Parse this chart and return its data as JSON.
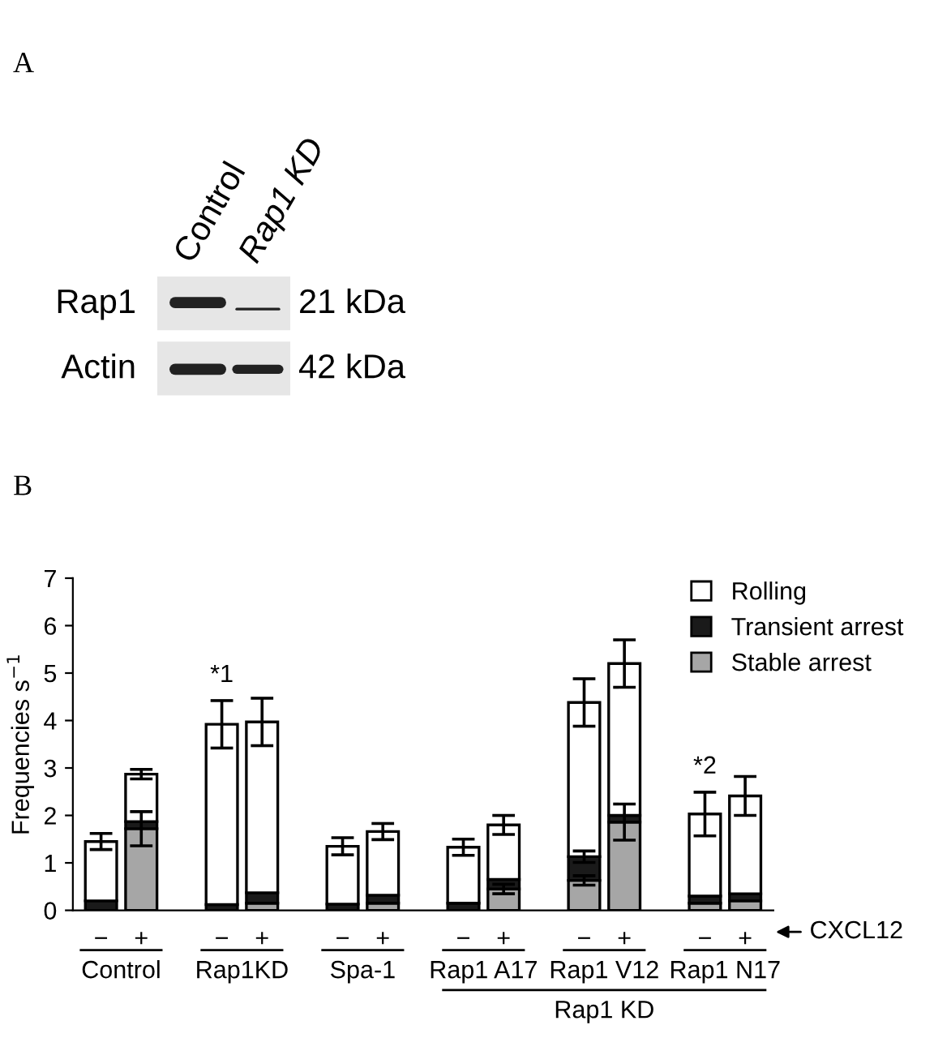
{
  "chart_data": [
    {
      "type": "other",
      "title": "A",
      "annotations": [
        "Control",
        "Rap1 KD",
        "Rap1",
        "21 kDa",
        "Actin",
        "42 kDa"
      ]
    },
    {
      "type": "bar",
      "title": "B",
      "ylabel": "Frequencies s$^{−1}$",
      "stacked": true,
      "legend": "top right",
      "categories": [
        "−",
        "+",
        null,
        "−",
        "+",
        null,
        "−",
        "+",
        null,
        "−",
        "+",
        null,
        "−",
        "+",
        null,
        "−",
        "+"
      ],
      "ylim": [
        0,
        7
      ],
      "yticks": [
        0,
        1,
        2,
        3,
        4,
        5,
        6,
        7
      ],
      "series": [
        {
          "name": "Stable arrest",
          "color": "#a6a6a6",
          "values": [
            null,
            1.72,
            null,
            null,
            0.15,
            null,
            null,
            0.15,
            null,
            null,
            0.45,
            null,
            0.63,
            1.86,
            null,
            0.15,
            0.2
          ],
          "errors": [
            null,
            0.36,
            null,
            null,
            null,
            null,
            null,
            null,
            null,
            null,
            0.1,
            null,
            0.1,
            0.38,
            null,
            null,
            null
          ]
        },
        {
          "name": "Transient arrest",
          "color": "#1a1a1a",
          "values": [
            0.2,
            0.15,
            null,
            0.12,
            0.22,
            null,
            0.13,
            0.17,
            null,
            0.15,
            0.2,
            null,
            0.5,
            0.14,
            null,
            0.15,
            0.15
          ],
          "errors": [
            null,
            null,
            null,
            null,
            null,
            null,
            null,
            null,
            null,
            null,
            null,
            null,
            0.12,
            null,
            null,
            null,
            null
          ]
        },
        {
          "name": "Rolling",
          "color": "#ffffff",
          "values": [
            1.25,
            1.0,
            null,
            3.8,
            3.6,
            null,
            1.22,
            1.34,
            null,
            1.18,
            1.15,
            null,
            3.25,
            3.2,
            null,
            1.73,
            2.06
          ],
          "errors": [
            0.17,
            0.1,
            null,
            0.5,
            0.5,
            null,
            0.18,
            0.17,
            null,
            0.17,
            0.2,
            null,
            0.5,
            0.5,
            null,
            0.46,
            0.41
          ]
        }
      ],
      "annotations": [
        "Control",
        "Rap1KD",
        "Spa-1",
        "Rap1 A17",
        "Rap1 V12",
        "Rap1 N17",
        "Rap1 KD",
        "CXCL12",
        "*1",
        "*2"
      ]
    }
  ]
}
